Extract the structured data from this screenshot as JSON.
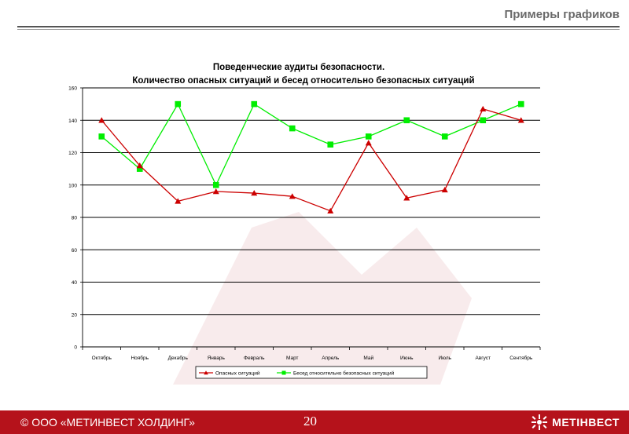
{
  "header": {
    "title": "Примеры графиков"
  },
  "footer": {
    "copyright": "© ООО «МЕТИНВЕСТ ХОЛДИНГ»",
    "page_number": "20",
    "logo_text": "МЕТІНВЕСТ"
  },
  "colors": {
    "footer_bg": "#b5121b",
    "series_dangerous": "#cc0000",
    "series_talks": "#00ee00"
  },
  "chart_data": {
    "type": "line",
    "title_lines": [
      "Поведенческие аудиты безопасности.",
      "Количество опасных ситуаций и бесед относительно безопасных ситуаций"
    ],
    "categories": [
      "Октябрь",
      "Ноябрь",
      "Декабрь",
      "Январь",
      "Февраль",
      "Март",
      "Апрель",
      "Май",
      "Июнь",
      "Июль",
      "Август",
      "Сентябрь"
    ],
    "ylim": [
      0,
      160
    ],
    "yticks": [
      0,
      20,
      40,
      60,
      80,
      100,
      120,
      140,
      160
    ],
    "grid": true,
    "legend_position": "bottom",
    "series": [
      {
        "name": "Опасных ситуаций",
        "marker": "triangle",
        "color": "#cc0000",
        "values": [
          140,
          112,
          90,
          96,
          95,
          93,
          84,
          126,
          92,
          97,
          147,
          140
        ]
      },
      {
        "name": "Бесед относительно безопасных ситуаций",
        "marker": "square",
        "color": "#00ee00",
        "values": [
          130,
          110,
          150,
          100,
          150,
          135,
          125,
          130,
          140,
          130,
          140,
          150
        ]
      }
    ]
  }
}
